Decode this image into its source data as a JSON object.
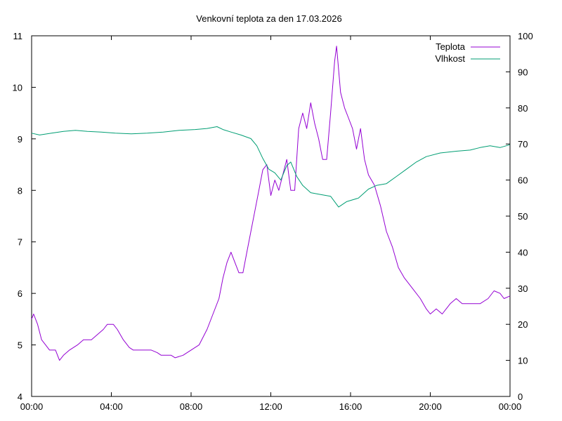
{
  "chart_data": {
    "type": "line",
    "title": "Venkovní teplota za den 17.03.2026",
    "x_ticks": [
      "00:00",
      "04:00",
      "08:00",
      "12:00",
      "16:00",
      "20:00",
      "00:00"
    ],
    "xlim": [
      0,
      24
    ],
    "y_left": {
      "ylim": [
        4,
        11
      ],
      "ticks": [
        "4",
        "5",
        "6",
        "7",
        "8",
        "9",
        "10",
        "11"
      ]
    },
    "y_right": {
      "ylim": [
        0,
        100
      ],
      "ticks": [
        "0",
        "10",
        "20",
        "30",
        "40",
        "50",
        "60",
        "70",
        "80",
        "90",
        "100"
      ]
    },
    "legend_position": "top-right",
    "grid": false,
    "series": [
      {
        "name": "Teplota",
        "axis": "left",
        "color": "#9400d3",
        "points": [
          [
            0,
            5.5
          ],
          [
            0.1,
            5.6
          ],
          [
            0.3,
            5.4
          ],
          [
            0.5,
            5.1
          ],
          [
            0.7,
            5.0
          ],
          [
            0.9,
            4.9
          ],
          [
            1.2,
            4.9
          ],
          [
            1.4,
            4.7
          ],
          [
            1.6,
            4.8
          ],
          [
            1.9,
            4.9
          ],
          [
            2.3,
            5.0
          ],
          [
            2.6,
            5.1
          ],
          [
            3.0,
            5.1
          ],
          [
            3.3,
            5.2
          ],
          [
            3.6,
            5.3
          ],
          [
            3.8,
            5.4
          ],
          [
            4.1,
            5.4
          ],
          [
            4.3,
            5.3
          ],
          [
            4.6,
            5.1
          ],
          [
            4.9,
            4.95
          ],
          [
            5.1,
            4.9
          ],
          [
            5.4,
            4.9
          ],
          [
            6.0,
            4.9
          ],
          [
            6.3,
            4.85
          ],
          [
            6.5,
            4.8
          ],
          [
            7.0,
            4.8
          ],
          [
            7.2,
            4.75
          ],
          [
            7.6,
            4.8
          ],
          [
            8.0,
            4.9
          ],
          [
            8.4,
            5.0
          ],
          [
            8.8,
            5.3
          ],
          [
            9.1,
            5.6
          ],
          [
            9.4,
            5.9
          ],
          [
            9.6,
            6.3
          ],
          [
            9.8,
            6.6
          ],
          [
            10.0,
            6.8
          ],
          [
            10.2,
            6.6
          ],
          [
            10.4,
            6.4
          ],
          [
            10.6,
            6.4
          ],
          [
            10.8,
            6.8
          ],
          [
            11.0,
            7.2
          ],
          [
            11.2,
            7.6
          ],
          [
            11.4,
            8.0
          ],
          [
            11.6,
            8.4
          ],
          [
            11.8,
            8.5
          ],
          [
            12.0,
            7.9
          ],
          [
            12.2,
            8.2
          ],
          [
            12.4,
            8.0
          ],
          [
            12.6,
            8.3
          ],
          [
            12.8,
            8.6
          ],
          [
            13.0,
            8.0
          ],
          [
            13.2,
            8.0
          ],
          [
            13.4,
            9.2
          ],
          [
            13.6,
            9.5
          ],
          [
            13.8,
            9.2
          ],
          [
            14.0,
            9.7
          ],
          [
            14.2,
            9.3
          ],
          [
            14.4,
            9.0
          ],
          [
            14.6,
            8.6
          ],
          [
            14.8,
            8.6
          ],
          [
            15.0,
            9.5
          ],
          [
            15.2,
            10.5
          ],
          [
            15.3,
            10.8
          ],
          [
            15.5,
            9.9
          ],
          [
            15.7,
            9.6
          ],
          [
            15.9,
            9.4
          ],
          [
            16.1,
            9.2
          ],
          [
            16.3,
            8.8
          ],
          [
            16.5,
            9.2
          ],
          [
            16.7,
            8.6
          ],
          [
            16.9,
            8.3
          ],
          [
            17.2,
            8.1
          ],
          [
            17.5,
            7.7
          ],
          [
            17.8,
            7.2
          ],
          [
            18.1,
            6.9
          ],
          [
            18.4,
            6.5
          ],
          [
            18.7,
            6.3
          ],
          [
            19.1,
            6.1
          ],
          [
            19.5,
            5.9
          ],
          [
            19.8,
            5.7
          ],
          [
            20.0,
            5.6
          ],
          [
            20.3,
            5.7
          ],
          [
            20.6,
            5.6
          ],
          [
            21.0,
            5.8
          ],
          [
            21.3,
            5.9
          ],
          [
            21.6,
            5.8
          ],
          [
            22.0,
            5.8
          ],
          [
            22.5,
            5.8
          ],
          [
            22.9,
            5.9
          ],
          [
            23.2,
            6.05
          ],
          [
            23.5,
            6.0
          ],
          [
            23.7,
            5.9
          ],
          [
            24.0,
            5.95
          ]
        ]
      },
      {
        "name": "Vlhkost",
        "axis": "right",
        "color": "#009e73",
        "points": [
          [
            0,
            73.0
          ],
          [
            0.4,
            72.5
          ],
          [
            1.0,
            73.0
          ],
          [
            1.6,
            73.5
          ],
          [
            2.2,
            73.8
          ],
          [
            2.8,
            73.5
          ],
          [
            3.5,
            73.3
          ],
          [
            4.2,
            73.0
          ],
          [
            5.0,
            72.8
          ],
          [
            5.8,
            73.0
          ],
          [
            6.6,
            73.3
          ],
          [
            7.4,
            73.8
          ],
          [
            8.2,
            74.0
          ],
          [
            8.8,
            74.3
          ],
          [
            9.3,
            74.8
          ],
          [
            9.6,
            74.0
          ],
          [
            10.0,
            73.3
          ],
          [
            10.5,
            72.5
          ],
          [
            11.0,
            71.5
          ],
          [
            11.3,
            69.5
          ],
          [
            11.6,
            66.0
          ],
          [
            11.9,
            63.0
          ],
          [
            12.2,
            62.0
          ],
          [
            12.5,
            60.0
          ],
          [
            12.8,
            64.0
          ],
          [
            13.0,
            65.0
          ],
          [
            13.3,
            61.0
          ],
          [
            13.6,
            58.5
          ],
          [
            14.0,
            56.5
          ],
          [
            14.5,
            56.0
          ],
          [
            15.0,
            55.5
          ],
          [
            15.4,
            52.5
          ],
          [
            15.8,
            54.0
          ],
          [
            16.4,
            55.0
          ],
          [
            16.9,
            57.5
          ],
          [
            17.3,
            58.5
          ],
          [
            17.8,
            59.0
          ],
          [
            18.3,
            61.0
          ],
          [
            18.8,
            63.0
          ],
          [
            19.3,
            65.0
          ],
          [
            19.8,
            66.5
          ],
          [
            20.5,
            67.5
          ],
          [
            21.3,
            68.0
          ],
          [
            22.0,
            68.3
          ],
          [
            22.5,
            69.0
          ],
          [
            23.0,
            69.5
          ],
          [
            23.5,
            69.0
          ],
          [
            24.0,
            69.8
          ]
        ]
      }
    ]
  }
}
